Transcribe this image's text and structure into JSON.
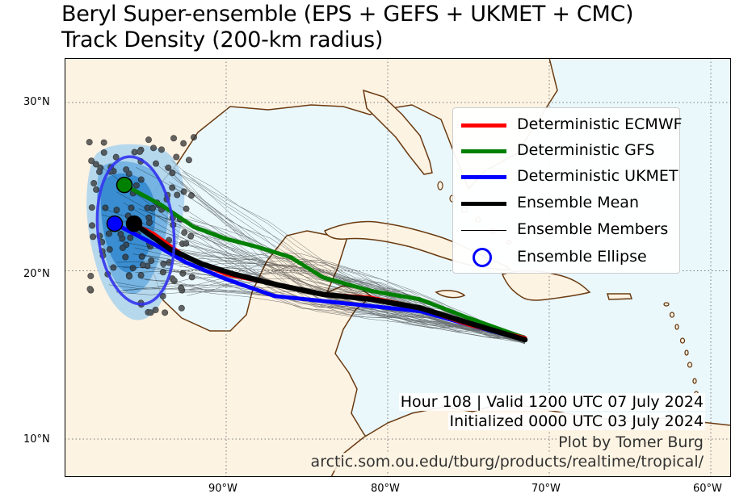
{
  "title_line1": "Beryl Super-ensemble (EPS + GEFS + UKMET + CMC)",
  "title_line2": "Track Density (200-km radius)",
  "axes": {
    "lat_labels": [
      "30°N",
      "20°N",
      "10°N"
    ],
    "lon_labels": [
      "90°W",
      "80°W",
      "70°W",
      "60°W"
    ]
  },
  "legend": {
    "items": [
      {
        "label": "Deterministic ECMWF",
        "color": "#ff0000",
        "style": "thick-line"
      },
      {
        "label": "Deterministic GFS",
        "color": "#008000",
        "style": "thick-line"
      },
      {
        "label": "Deterministic UKMET",
        "color": "#0000ff",
        "style": "thick-line"
      },
      {
        "label": "Ensemble Mean",
        "color": "#000000",
        "style": "thick-line"
      },
      {
        "label": "Ensemble Members",
        "color": "#000000",
        "style": "thin-line"
      },
      {
        "label": "Ensemble Ellipse",
        "color": "#0000ff",
        "style": "ring"
      }
    ]
  },
  "info": {
    "valid": "Hour 108 | Valid 1200 UTC 07 July 2024",
    "initialized": "Initialized 0000 UTC 03 July 2024",
    "credit": "Plot by Tomer Burg",
    "url": "arctic.som.ou.edu/tburg/products/realtime/tropical/"
  },
  "colors": {
    "ocean": "#eaf8fc",
    "land": "#fdf3e3",
    "coast": "#6b3a10",
    "density_light": "#a9d2ee",
    "density_mid": "#6aaee0",
    "density_dark": "#2f86cc"
  },
  "chart_data": {
    "type": "map",
    "tracks": [
      {
        "name": "Deterministic ECMWF",
        "points": [
          [
            -71.5,
            16.0
          ],
          [
            -75,
            16.8
          ],
          [
            -78,
            17.8
          ],
          [
            -81,
            18.4
          ],
          [
            -84,
            18.6
          ],
          [
            -87,
            19.2
          ],
          [
            -90,
            19.8
          ],
          [
            -92.5,
            20.8
          ],
          [
            -94.5,
            22.2
          ],
          [
            -95.8,
            22.8
          ]
        ]
      },
      {
        "name": "Deterministic GFS",
        "points": [
          [
            -71.5,
            16.0
          ],
          [
            -75,
            17.2
          ],
          [
            -78,
            18.3
          ],
          [
            -81,
            18.8
          ],
          [
            -84,
            19.6
          ],
          [
            -86,
            20.8
          ],
          [
            -88,
            21.4
          ],
          [
            -90,
            21.9
          ],
          [
            -92,
            22.6
          ],
          [
            -94,
            23.9
          ],
          [
            -96.3,
            25.1
          ]
        ]
      },
      {
        "name": "Deterministic UKMET",
        "points": [
          [
            -71.5,
            15.9
          ],
          [
            -75,
            16.8
          ],
          [
            -78,
            17.6
          ],
          [
            -81,
            17.9
          ],
          [
            -84,
            18.2
          ],
          [
            -87,
            18.5
          ],
          [
            -90,
            19.5
          ],
          [
            -92.5,
            20.5
          ],
          [
            -94.5,
            21.6
          ],
          [
            -96.9,
            22.8
          ]
        ]
      },
      {
        "name": "Ensemble Mean",
        "points": [
          [
            -71.5,
            15.9
          ],
          [
            -75,
            16.9
          ],
          [
            -78,
            17.8
          ],
          [
            -81,
            18.3
          ],
          [
            -84,
            18.6
          ],
          [
            -87,
            19.2
          ],
          [
            -89.5,
            19.8
          ],
          [
            -91.5,
            20.4
          ],
          [
            -93.5,
            21.3
          ],
          [
            -95.7,
            22.8
          ]
        ]
      }
    ],
    "endpoints": [
      {
        "name": "Deterministic GFS",
        "lon": -96.3,
        "lat": 25.1
      },
      {
        "name": "Deterministic UKMET",
        "lon": -96.9,
        "lat": 22.8
      },
      {
        "name": "Ensemble Mean",
        "lon": -95.7,
        "lat": 22.8
      }
    ],
    "ellipse": {
      "center_lon": -95.6,
      "center_lat": 22.4,
      "semi_lon_deg": 3.5,
      "semi_lat_deg": 4.0
    },
    "xlim": [
      -100,
      -59
    ],
    "ylim": [
      8.5,
      33.5
    ]
  }
}
